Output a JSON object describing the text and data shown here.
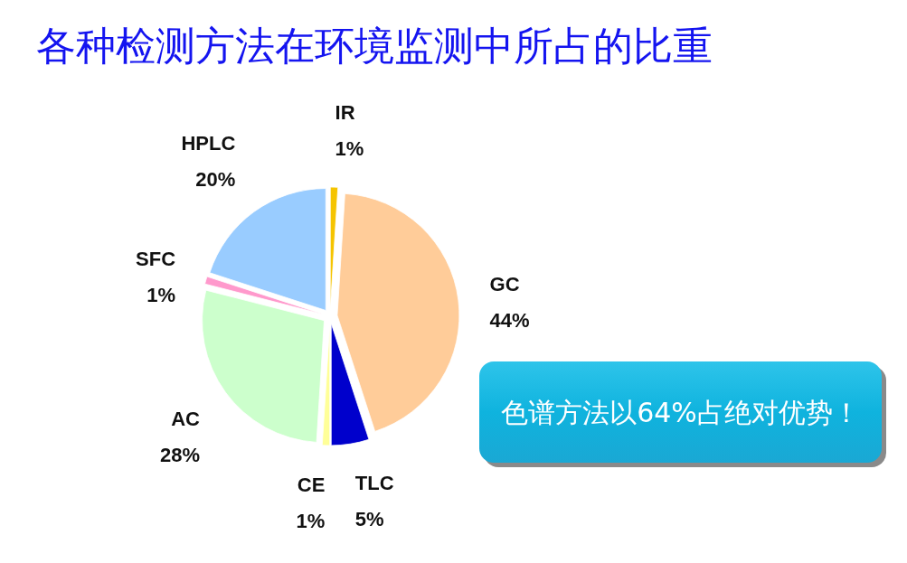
{
  "chart_data": {
    "type": "pie",
    "title": "各种检测方法在环境监测中所占的比重",
    "categories": [
      "IR",
      "GC",
      "TLC",
      "CE",
      "AC",
      "SFC",
      "HPLC"
    ],
    "values": [
      1,
      44,
      5,
      1,
      28,
      1,
      20
    ],
    "colors": [
      "#f5c400",
      "#ffcc99",
      "#0000cc",
      "#ffff99",
      "#ccffcc",
      "#ff99cc",
      "#99ccff"
    ],
    "value_labels": [
      "1%",
      "44%",
      "5%",
      "1%",
      "28%",
      "1%",
      "20%"
    ],
    "annotations": [
      "色谱方法以64%占绝对优势！"
    ]
  }
}
